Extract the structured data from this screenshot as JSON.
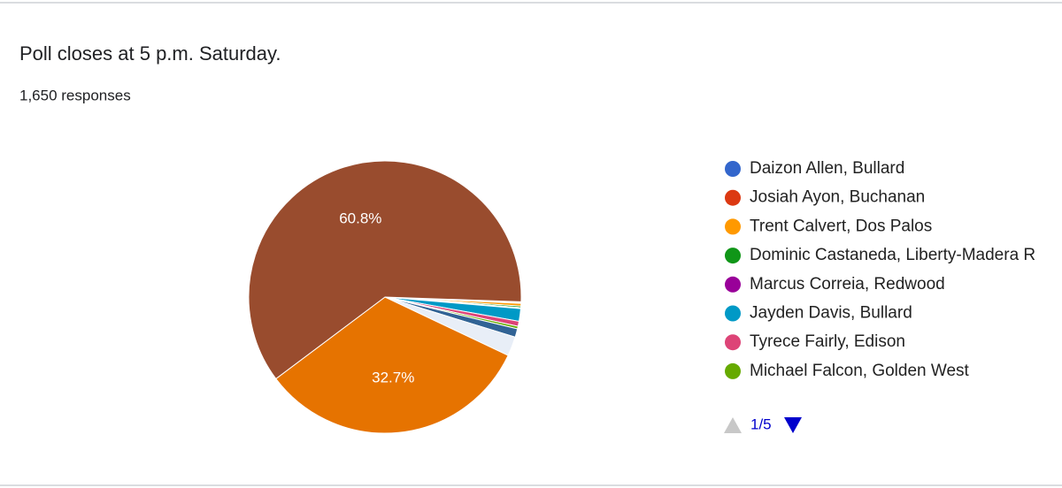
{
  "chart_data": {
    "type": "pie",
    "title": "Poll closes at 5 p.m. Saturday.",
    "subtitle": "1,650 responses",
    "categories": [
      "Daizon Allen, Bullard",
      "Josiah Ayon, Buchanan",
      "Trent Calvert, Dos Palos",
      "Dominic Castaneda, Liberty-Madera R",
      "Marcus Correia, Redwood",
      "Jayden Davis, Bullard",
      "Tyrece Fairly, Edison",
      "Michael Falcon, Golden West",
      null,
      null,
      null,
      null
    ],
    "values": [
      0.1,
      0.1,
      0.3,
      0.2,
      0.1,
      1.5,
      0.6,
      0.3,
      1.0,
      2.3,
      32.7,
      60.8
    ],
    "value_labels": [
      null,
      null,
      null,
      null,
      null,
      null,
      null,
      null,
      null,
      null,
      "32.7%",
      "60.8%"
    ],
    "colors": [
      "#3366cc",
      "#dc3912",
      "#ff9900",
      "#109618",
      "#990099",
      "#0099c6",
      "#dd4477",
      "#66aa00",
      "#316395",
      "#e8eef7",
      "#e67300",
      "#994c2e"
    ]
  },
  "legend_pager": "1/5"
}
